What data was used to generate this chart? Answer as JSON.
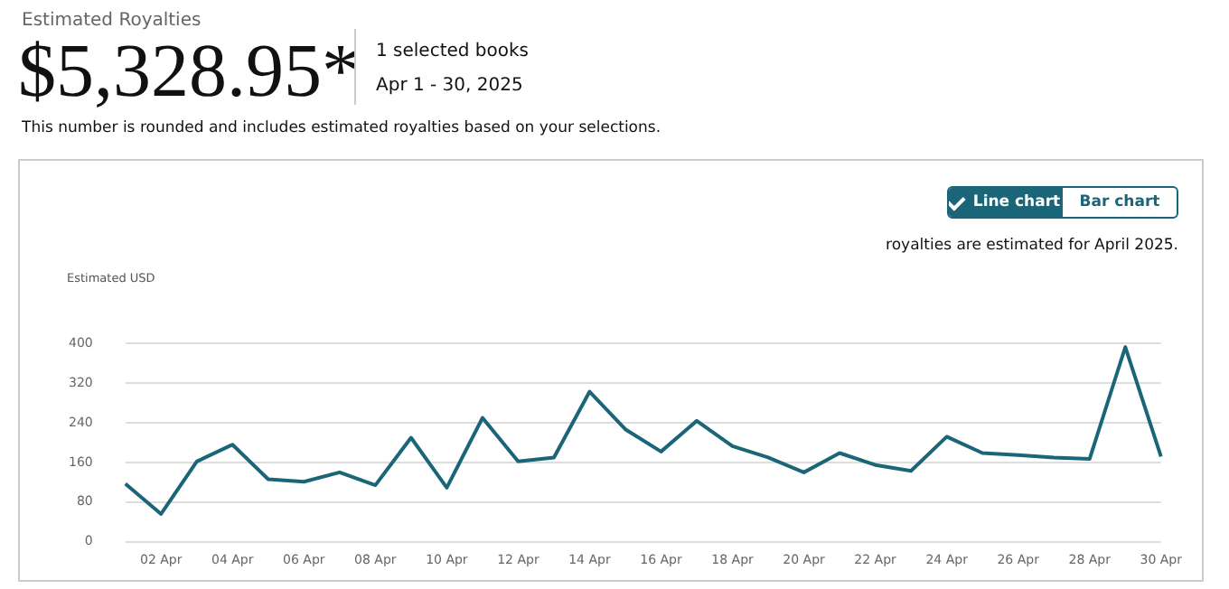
{
  "chart_data": {
    "type": "line",
    "title": "Estimated Royalties",
    "subtitle": "$5,328.95*",
    "ylabel": "Estimated USD",
    "annotations": [
      "1 selected books",
      "Apr 1 - 30, 2025",
      "This number is rounded and includes estimated royalties based on your selections.",
      "Line chart",
      "Bar chart",
      "royalties are estimated for April 2025."
    ],
    "categories": [
      null,
      "02 Apr",
      null,
      "04 Apr",
      null,
      "06 Apr",
      null,
      "08 Apr",
      null,
      "10 Apr",
      null,
      "12 Apr",
      null,
      "14 Apr",
      null,
      "16 Apr",
      null,
      "18 Apr",
      null,
      "20 Apr",
      null,
      "22 Apr",
      null,
      "24 Apr",
      null,
      "26 Apr",
      null,
      "28 Apr",
      null,
      "30 Apr"
    ],
    "series": [
      {
        "color": "#1b6579",
        "values": [
          117,
          56,
          162,
          196,
          126,
          121,
          140,
          114,
          210,
          109,
          250,
          162,
          170,
          303,
          227,
          182,
          244,
          193,
          170,
          140,
          179,
          155,
          143,
          212,
          179,
          175,
          170,
          167,
          393,
          172
        ]
      }
    ],
    "ylim": [
      0,
      400
    ],
    "yticks": [
      0,
      80,
      160,
      240,
      320,
      400
    ],
    "grid": "y",
    "legend": false,
    "marker": "none",
    "line_style": "solid"
  }
}
